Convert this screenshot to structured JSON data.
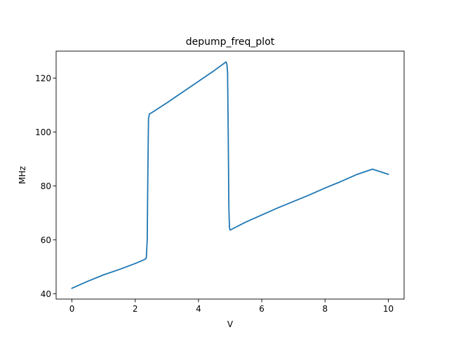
{
  "chart_data": {
    "type": "line",
    "title": "depump_freq_plot",
    "xlabel": "V",
    "ylabel": "MHz",
    "xlim": [
      -0.5,
      10.5
    ],
    "ylim": [
      38.0,
      130.0
    ],
    "xticks": [
      0,
      2,
      4,
      6,
      8,
      10
    ],
    "yticks": [
      40,
      60,
      80,
      100,
      120
    ],
    "grid": false,
    "series": [
      {
        "name": "",
        "color": "#1f77b4",
        "x": [
          0.0,
          0.5,
          1.0,
          1.5,
          2.0,
          2.3,
          2.35,
          2.38,
          2.4,
          2.42,
          2.45,
          2.5,
          3.0,
          3.5,
          4.0,
          4.5,
          4.85,
          4.87,
          4.9,
          4.92,
          4.94,
          4.96,
          4.98,
          5.0,
          5.5,
          6.0,
          6.5,
          7.0,
          7.5,
          8.0,
          8.5,
          9.0,
          9.5,
          10.0
        ],
        "y": [
          42.0,
          44.6,
          47.0,
          49.0,
          51.2,
          52.7,
          53.2,
          60.0,
          85.0,
          105.0,
          106.7,
          107.0,
          110.8,
          114.8,
          118.8,
          122.8,
          125.8,
          126.0,
          125.0,
          122.0,
          100.0,
          72.0,
          64.5,
          63.6,
          66.6,
          69.2,
          71.8,
          74.2,
          76.6,
          79.2,
          81.6,
          84.2,
          86.2,
          84.3
        ]
      }
    ]
  }
}
